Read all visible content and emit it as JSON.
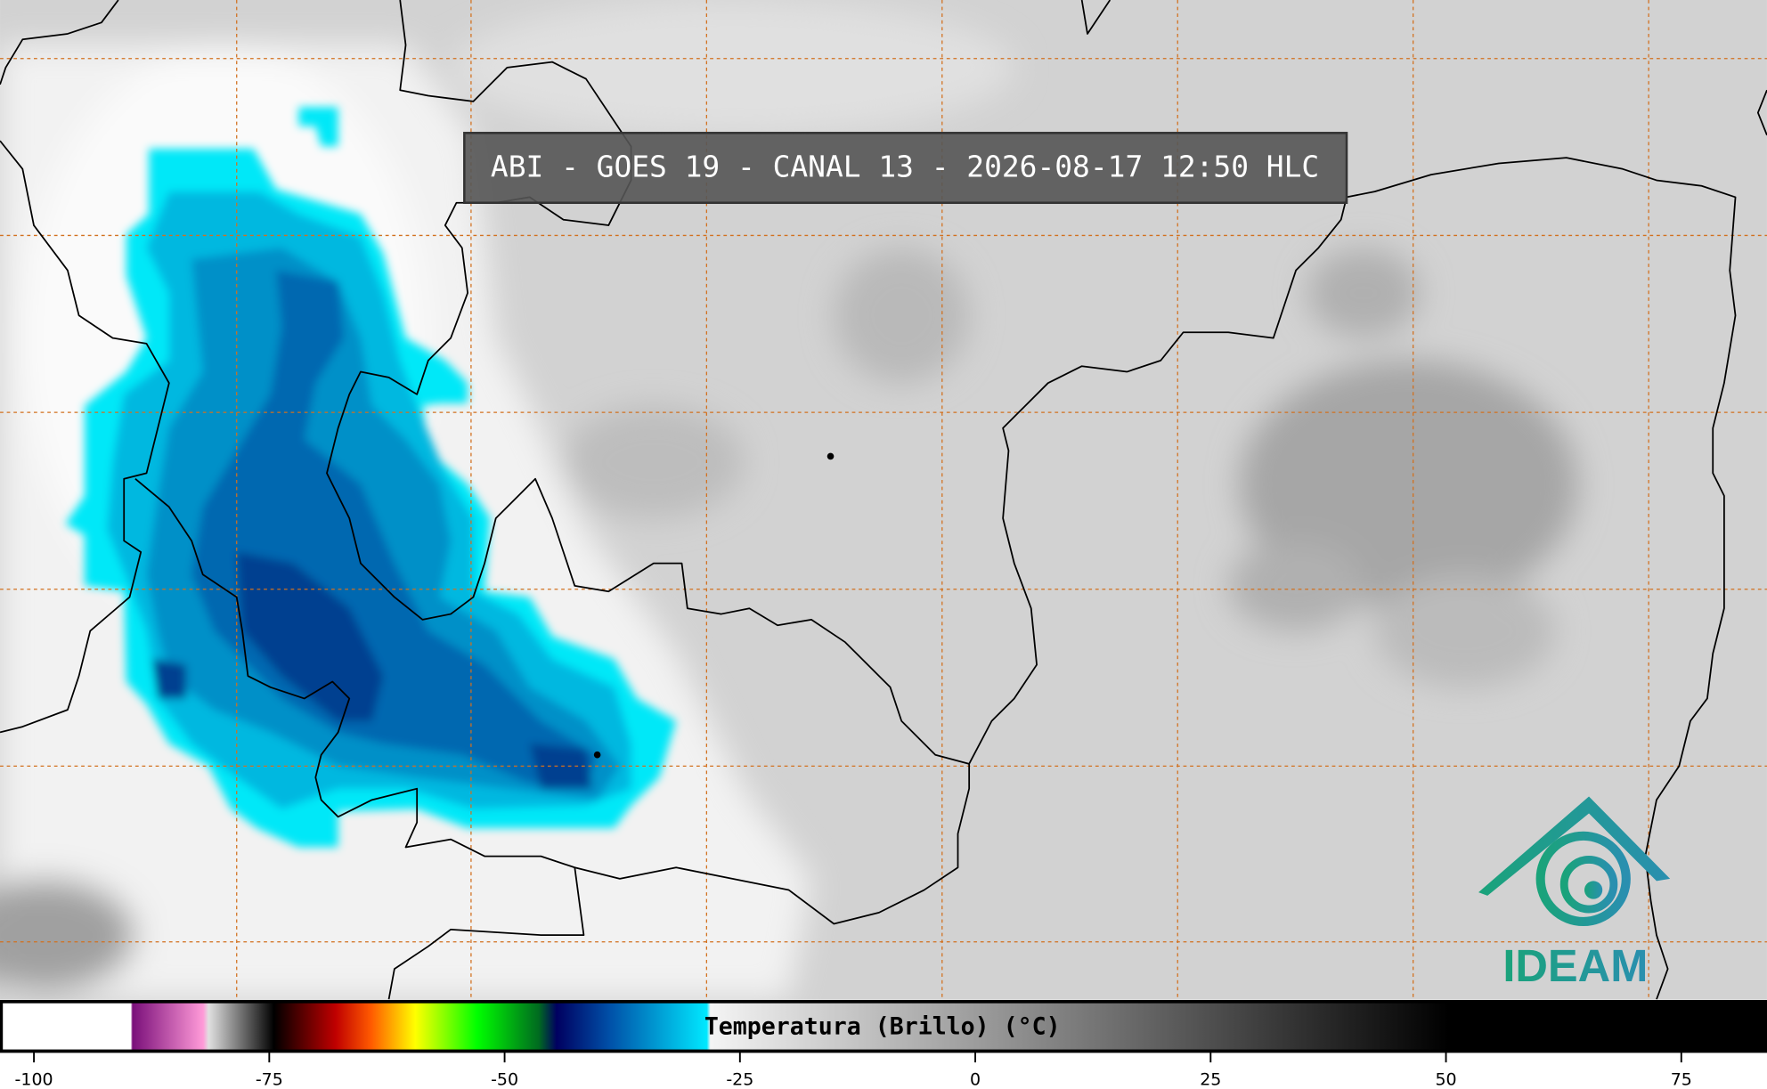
{
  "header": {
    "title": "ABI - GOES 19 - CANAL 13 - 2026-08-17 12:50 HLC"
  },
  "colorbar": {
    "label": "Temperatura (Brillo) (°C)",
    "xlim": [
      -103.6,
      84.1
    ],
    "xticks": [
      -100,
      -75,
      -50,
      -25,
      0,
      25,
      50,
      75
    ]
  },
  "logo": {
    "text": "IDEAM"
  }
}
